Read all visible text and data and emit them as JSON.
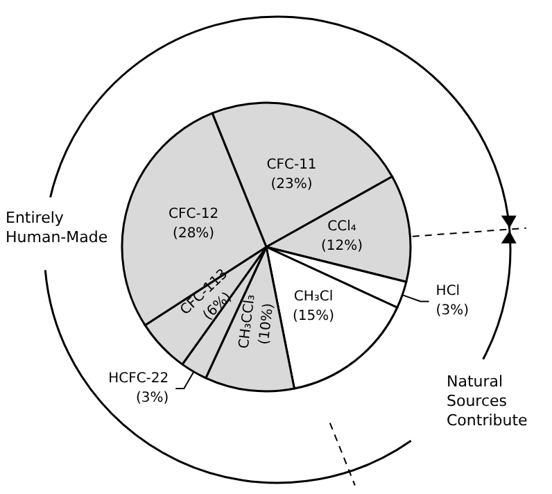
{
  "chart_data": {
    "type": "pie",
    "categories": [
      "CFC-11",
      "CCl₄",
      "HCl",
      "CH₃Cl",
      "CH₃CCl₃",
      "HCFC-22",
      "CFC-113",
      "CFC-12"
    ],
    "values": [
      23,
      12,
      3,
      15,
      10,
      3,
      6,
      28
    ],
    "value_labels": [
      "(23%)",
      "(12%)",
      "(3%)",
      "(15%)",
      "(10%)",
      "(3%)",
      "(6%)",
      "(28%)"
    ],
    "colors": [
      "#d9d9d9",
      "#d9d9d9",
      "#ffffff",
      "#ffffff",
      "#d9d9d9",
      "#d9d9d9",
      "#d9d9d9",
      "#d9d9d9"
    ],
    "annotations": [
      "Entirely Human-Made",
      "Natural Sources Contribute"
    ],
    "legend": false
  }
}
